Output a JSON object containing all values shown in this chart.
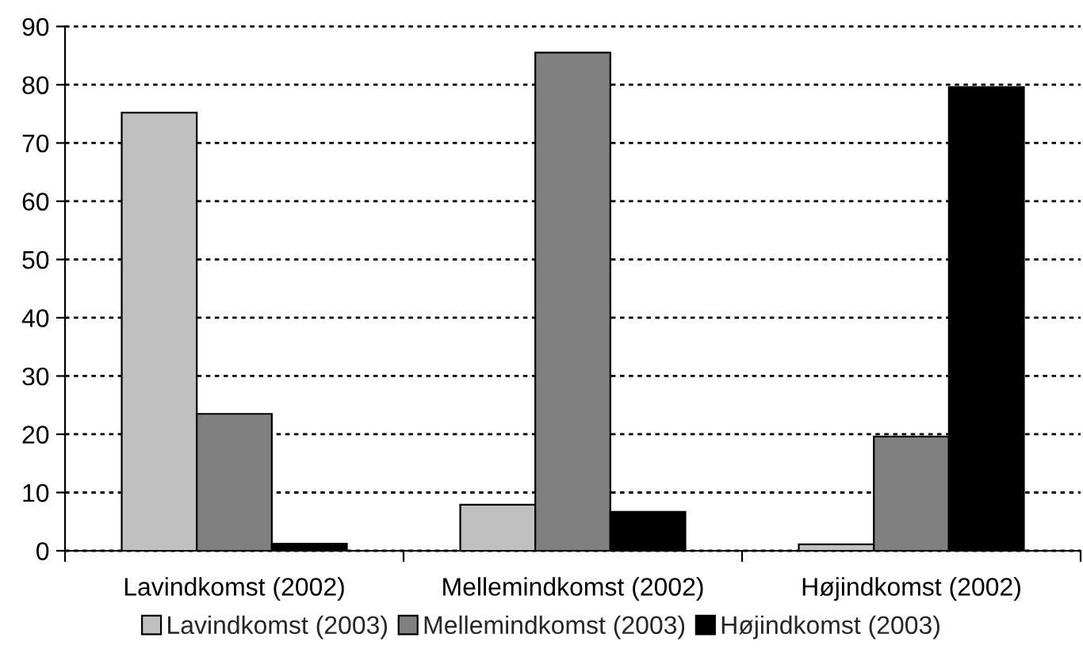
{
  "chart_data": {
    "type": "bar",
    "categories": [
      "Lavindkomst (2002)",
      "Mellemindkomst (2002)",
      "Højindkomst (2002)"
    ],
    "series": [
      {
        "name": "Lavindkomst (2003)",
        "color": "#c0c0c0",
        "values": [
          75.2,
          7.9,
          1.1
        ]
      },
      {
        "name": "Mellemindkomst (2003)",
        "color": "#808080",
        "values": [
          23.5,
          85.5,
          19.6
        ]
      },
      {
        "name": "Højindkomst (2003)",
        "color": "#000000",
        "values": [
          1.2,
          6.7,
          79.6
        ]
      }
    ],
    "ylim": [
      0,
      90
    ],
    "yticks": [
      0,
      10,
      20,
      30,
      40,
      50,
      60,
      70,
      80,
      90
    ],
    "grid": "y",
    "legend": "bottom"
  }
}
